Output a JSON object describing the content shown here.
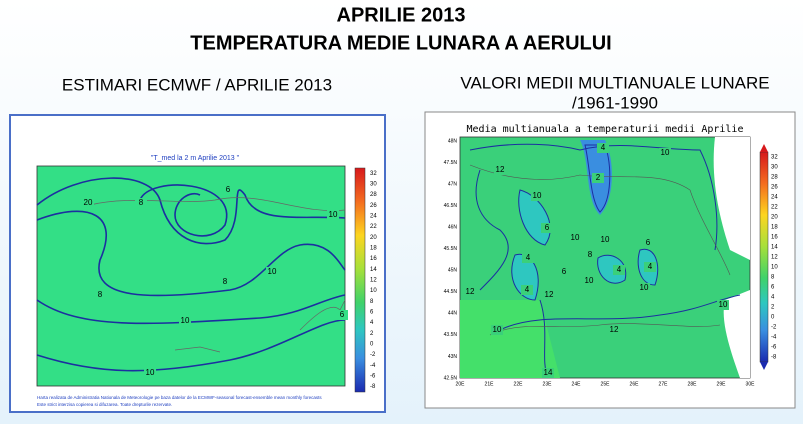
{
  "header": {
    "title_lines": [
      "APRILIE 2013",
      "TEMPERATURA MEDIE LUNARA A AERULUI"
    ]
  },
  "left": {
    "heading": "ESTIMARI ECMWF / APRILIE 2013",
    "map": {
      "title": "\"T_med la 2 m Aprilie 2013 \"",
      "colorbar_labels": [
        "32",
        "30",
        "28",
        "26",
        "24",
        "22",
        "20",
        "18",
        "16",
        "14",
        "12",
        "10",
        "8",
        "6",
        "4",
        "2",
        "0",
        "-2",
        "-4",
        "-6",
        "-8"
      ],
      "contour_labels": [
        "20",
        "8",
        "6",
        "10",
        "8",
        "8",
        "10",
        "10",
        "10",
        "6"
      ],
      "footnote_lines": [
        "Harta realizata de Administratia Nationala de Meteorologie pe baza datelor de la ECMWF-seasonal forecast-ensemble mean monthly forecasts",
        "Este strict interzisa copierea si difuzarea. Toate drepturile rezervate."
      ]
    }
  },
  "right": {
    "heading_lines": [
      "VALORI MEDII MULTIANUALE LUNARE",
      "/1961-1990"
    ],
    "map": {
      "title": "Media multianuala a temperaturii medii Aprilie",
      "colorbar_labels": [
        "32",
        "30",
        "28",
        "26",
        "24",
        "22",
        "20",
        "18",
        "16",
        "14",
        "12",
        "10",
        "8",
        "6",
        "4",
        "2",
        "0",
        "-2",
        "-4",
        "-6",
        "-8"
      ],
      "contour_labels": [
        "12",
        "10",
        "4",
        "2",
        "10",
        "6",
        "10",
        "10",
        "6",
        "8",
        "4",
        "6",
        "4",
        "4",
        "10",
        "10",
        "12",
        "4",
        "12",
        "10",
        "10",
        "12",
        "14"
      ],
      "lat_labels": [
        "48N",
        "47.5N",
        "47N",
        "46.5N",
        "46N",
        "45.5N",
        "45N",
        "44.5N",
        "44N",
        "43.5N",
        "43N",
        "42.5N"
      ],
      "lon_labels": [
        "20E",
        "21E",
        "22E",
        "23E",
        "24E",
        "25E",
        "26E",
        "27E",
        "28E",
        "29E",
        "30E"
      ]
    }
  }
}
